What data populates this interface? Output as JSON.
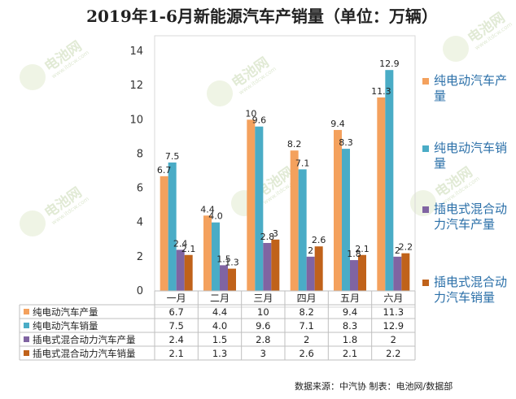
{
  "chart_data": {
    "type": "bar",
    "title": "2019年1-6月新能源汽车产销量（单位：万辆）",
    "categories": [
      "一月",
      "二月",
      "三月",
      "四月",
      "五月",
      "六月"
    ],
    "series": [
      {
        "name": "纯电动汽车产量",
        "legend": "纯电动汽车产\n量",
        "color": "#f4a15d",
        "values": [
          6.7,
          4.4,
          10,
          8.2,
          9.4,
          11.3
        ],
        "labels": [
          "6.7",
          "4.4",
          "10",
          "8.2",
          "9.4",
          "11.3"
        ],
        "table": [
          "6.7",
          "4.4",
          "10",
          "8.2",
          "9.4",
          "11.3"
        ]
      },
      {
        "name": "纯电动汽车销量",
        "legend": "纯电动汽车销\n量",
        "color": "#4aacc6",
        "values": [
          7.5,
          4.0,
          9.6,
          7.1,
          8.3,
          12.9
        ],
        "labels": [
          "7.5",
          "4.0",
          "9.6",
          "7.1",
          "8.3",
          "12.9"
        ],
        "table": [
          "7.5",
          "4.0",
          "9.6",
          "7.1",
          "8.3",
          "12.9"
        ]
      },
      {
        "name": "插电式混合动力汽车产量",
        "legend": "插电式混合动\n力汽车产量",
        "color": "#8064a2",
        "values": [
          2.4,
          1.5,
          2.8,
          2,
          1.8,
          2
        ],
        "labels": [
          "2.4",
          "1.5",
          "2.8",
          "2",
          "1.8",
          "2"
        ],
        "table": [
          "2.4",
          "1.5",
          "2.8",
          "2",
          "1.8",
          "2"
        ]
      },
      {
        "name": "插电式混合动力汽车销量",
        "legend": "插电式混合动\n力汽车销量",
        "color": "#c0621a",
        "values": [
          2.1,
          1.3,
          3,
          2.6,
          2.1,
          2.2
        ],
        "labels": [
          "2.1",
          "1.3",
          "3",
          "2.6",
          "2.1",
          "2.2"
        ],
        "table": [
          "2.1",
          "1.3",
          "3",
          "2.6",
          "2.1",
          "2.2"
        ]
      }
    ],
    "ylim": [
      0,
      14
    ],
    "yticks": [
      0,
      2,
      4,
      6,
      8,
      10,
      12,
      14
    ],
    "grid": false,
    "legend_position": "right",
    "has_data_table": true
  },
  "source": "数据来源：中汽协  制表：电池网/数据部",
  "watermark": {
    "brand": "电池网",
    "url": "www.itdcw.com"
  }
}
